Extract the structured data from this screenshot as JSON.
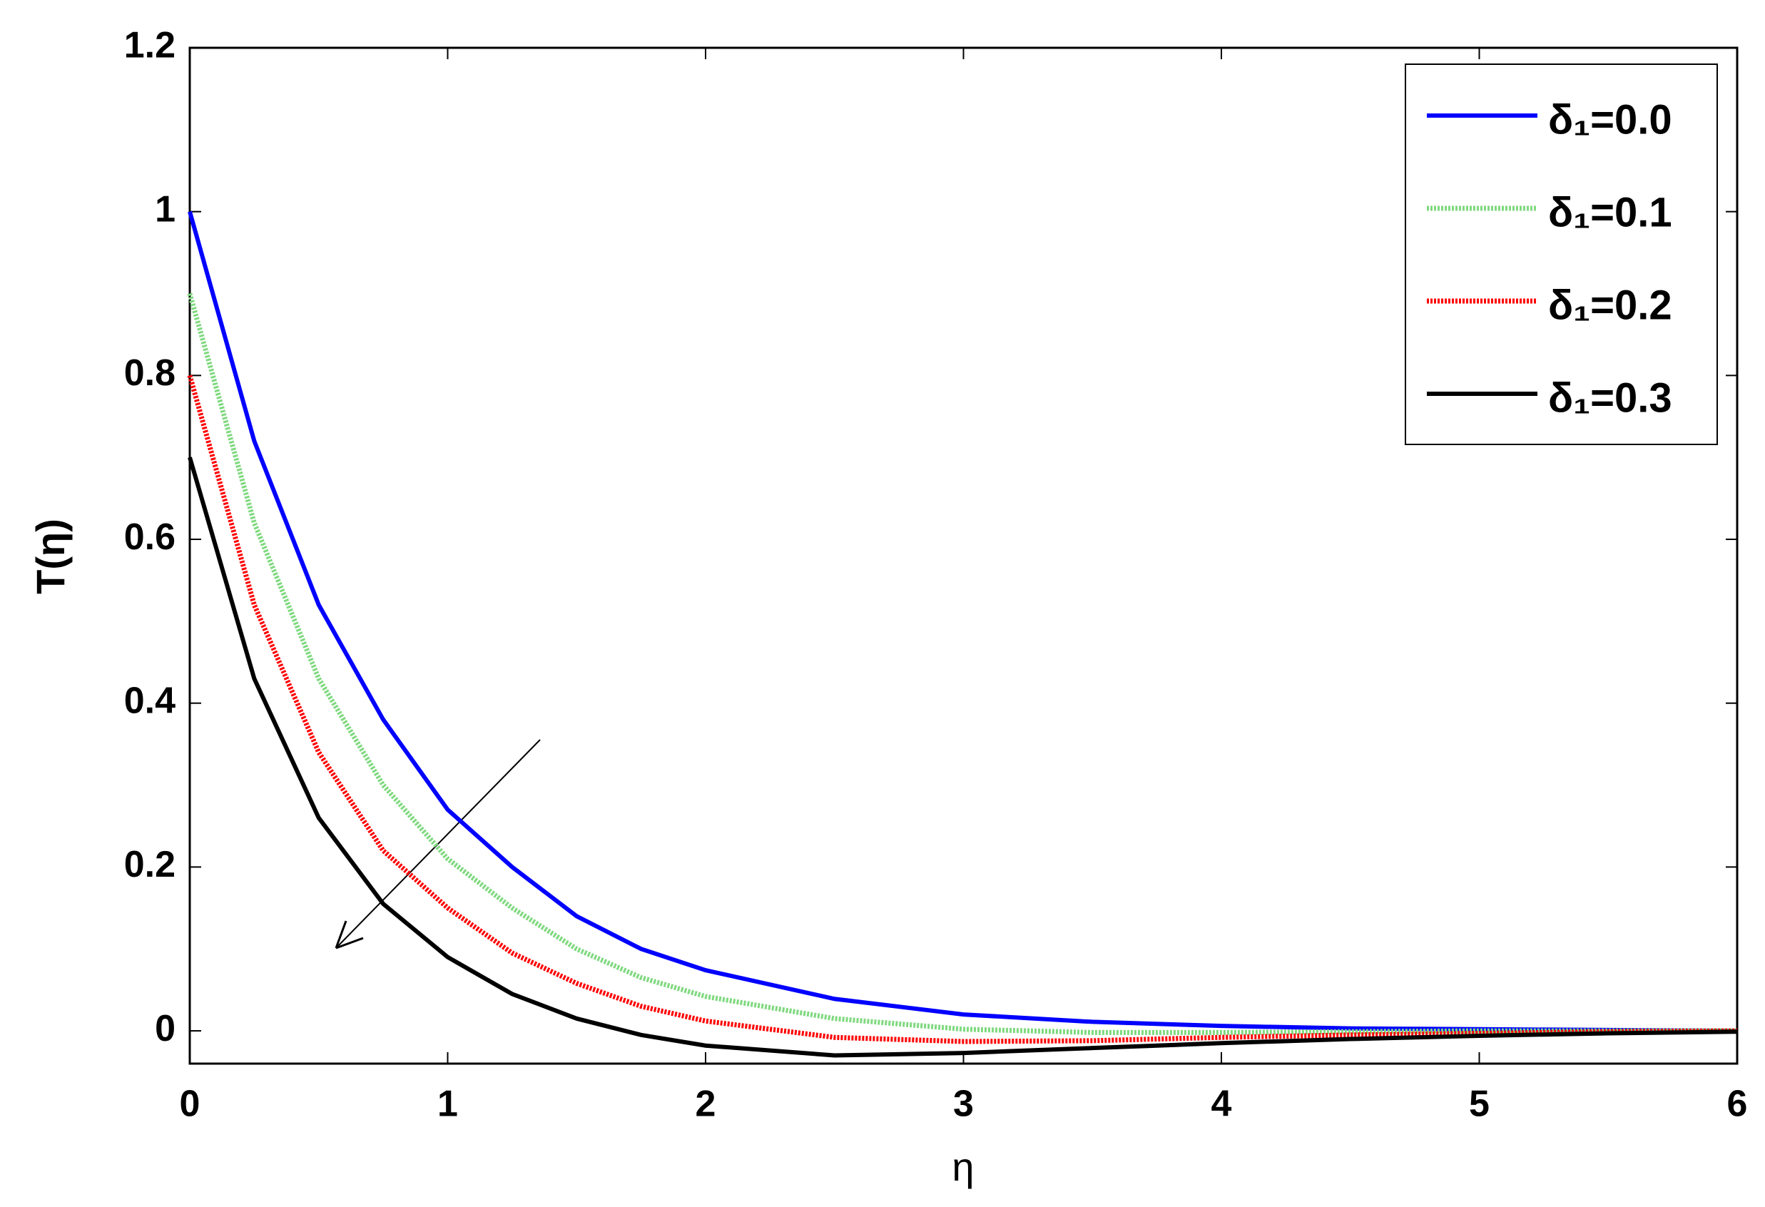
{
  "chart_data": {
    "type": "line",
    "x_label": "η",
    "y_label": "T(η)",
    "x": [
      0,
      0.25,
      0.5,
      0.75,
      1,
      1.25,
      1.5,
      1.75,
      2,
      2.5,
      3,
      3.5,
      4,
      4.5,
      5,
      5.5,
      6
    ],
    "series": [
      {
        "name": "δ₁=0.0",
        "color": "#0000ff",
        "style": "solid",
        "values": [
          1,
          0.72,
          0.52,
          0.38,
          0.27,
          0.2,
          0.14,
          0.1,
          0.074,
          0.039,
          0.02,
          0.011,
          0.006,
          0.003,
          0.002,
          0.001,
          0
        ]
      },
      {
        "name": "δ₁=0.1",
        "color": "#7fd97f",
        "style": "dotted",
        "values": [
          0.9,
          0.62,
          0.43,
          0.3,
          0.21,
          0.15,
          0.1,
          0.065,
          0.042,
          0.015,
          0.002,
          -0.002,
          -0.002,
          -0.001,
          0,
          0,
          0
        ]
      },
      {
        "name": "δ₁=0.2",
        "color": "#ff0000",
        "style": "dotted",
        "values": [
          0.8,
          0.52,
          0.34,
          0.22,
          0.15,
          0.095,
          0.058,
          0.03,
          0.012,
          -0.008,
          -0.013,
          -0.012,
          -0.008,
          -0.005,
          -0.003,
          -0.001,
          0
        ]
      },
      {
        "name": "δ₁=0.3",
        "color": "#000000",
        "style": "solid",
        "values": [
          0.7,
          0.43,
          0.26,
          0.155,
          0.09,
          0.045,
          0.015,
          -0.005,
          -0.018,
          -0.03,
          -0.027,
          -0.021,
          -0.015,
          -0.01,
          -0.006,
          -0.003,
          -0.001
        ]
      }
    ],
    "xlim": [
      0,
      6
    ],
    "xticks": [
      0,
      1,
      2,
      3,
      4,
      5,
      6
    ],
    "ylim": [
      -0.04,
      1.2
    ],
    "yticks": [
      0,
      0.2,
      0.4,
      0.6,
      0.8,
      1,
      1.2
    ],
    "grid": false,
    "legend": "top-right"
  }
}
